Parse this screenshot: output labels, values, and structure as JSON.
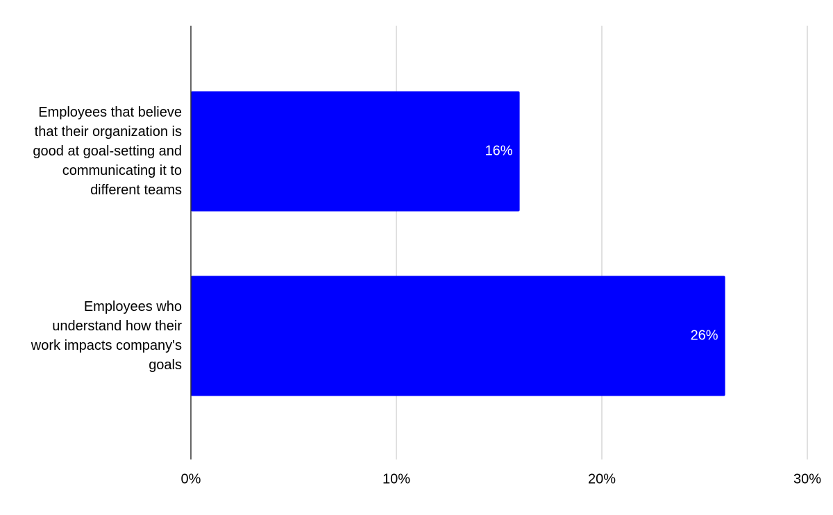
{
  "chart_data": {
    "type": "bar",
    "orientation": "horizontal",
    "categories": [
      "Employees that believe that their organization is good at goal-setting and communicating it to different teams",
      "Employees who understand how their work impacts company's goals"
    ],
    "values": [
      16,
      26
    ],
    "value_labels": [
      "16%",
      "26%"
    ],
    "color": "#0000ff",
    "xlim": [
      0,
      30
    ],
    "xticks": [
      {
        "value": 0,
        "label": "0%"
      },
      {
        "value": 10,
        "label": "10%"
      },
      {
        "value": 20,
        "label": "20%"
      },
      {
        "value": 30,
        "label": "30%"
      }
    ],
    "grid": true
  }
}
